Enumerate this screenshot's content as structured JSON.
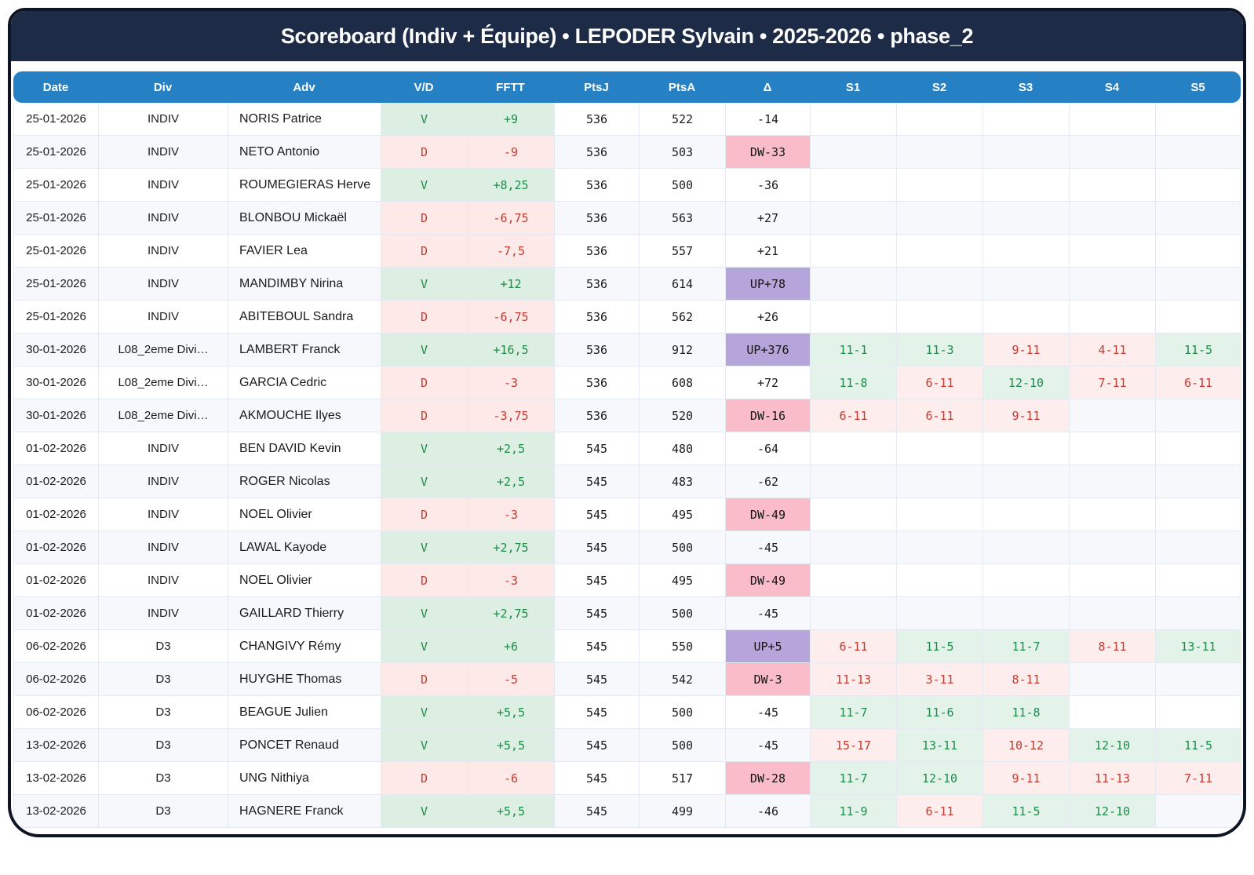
{
  "title": "Scoreboard (Indiv + Équipe) • LEPODER Sylvain • 2025-2026 • phase_2",
  "columns": [
    "Date",
    "Div",
    "Adv",
    "V/D",
    "FFTT",
    "PtsJ",
    "PtsA",
    "Δ",
    "S1",
    "S2",
    "S3",
    "S4",
    "S5"
  ],
  "colors": {
    "frame": "#0d1424",
    "banner": "#1d2b47",
    "header": "#2581c4",
    "win_bg": "#ddeee3",
    "win_text": "#1f8b4a",
    "loss_bg": "#fde9e8",
    "loss_text": "#c33a31",
    "up_bg": "#b6a5da",
    "down_bg": "#fbbcca",
    "row_alt": "#f7f8fc"
  },
  "rows": [
    {
      "date": "25-01-2026",
      "div": "INDIV",
      "adv": "NORIS Patrice",
      "vd": "V",
      "fftt": "+9",
      "ptsj": "536",
      "ptsa": "522",
      "delta": "-14",
      "delta_kind": "none",
      "sets": [
        null,
        null,
        null,
        null,
        null
      ]
    },
    {
      "date": "25-01-2026",
      "div": "INDIV",
      "adv": "NETO Antonio",
      "vd": "D",
      "fftt": "-9",
      "ptsj": "536",
      "ptsa": "503",
      "delta": "DW-33",
      "delta_kind": "down",
      "sets": [
        null,
        null,
        null,
        null,
        null
      ]
    },
    {
      "date": "25-01-2026",
      "div": "INDIV",
      "adv": "ROUMEGIERAS Herve",
      "vd": "V",
      "fftt": "+8,25",
      "ptsj": "536",
      "ptsa": "500",
      "delta": "-36",
      "delta_kind": "none",
      "sets": [
        null,
        null,
        null,
        null,
        null
      ]
    },
    {
      "date": "25-01-2026",
      "div": "INDIV",
      "adv": "BLONBOU Mickaël",
      "vd": "D",
      "fftt": "-6,75",
      "ptsj": "536",
      "ptsa": "563",
      "delta": "+27",
      "delta_kind": "none",
      "sets": [
        null,
        null,
        null,
        null,
        null
      ]
    },
    {
      "date": "25-01-2026",
      "div": "INDIV",
      "adv": "FAVIER Lea",
      "vd": "D",
      "fftt": "-7,5",
      "ptsj": "536",
      "ptsa": "557",
      "delta": "+21",
      "delta_kind": "none",
      "sets": [
        null,
        null,
        null,
        null,
        null
      ]
    },
    {
      "date": "25-01-2026",
      "div": "INDIV",
      "adv": "MANDIMBY Nirina",
      "vd": "V",
      "fftt": "+12",
      "ptsj": "536",
      "ptsa": "614",
      "delta": "UP+78",
      "delta_kind": "up",
      "sets": [
        null,
        null,
        null,
        null,
        null
      ]
    },
    {
      "date": "25-01-2026",
      "div": "INDIV",
      "adv": "ABITEBOUL Sandra",
      "vd": "D",
      "fftt": "-6,75",
      "ptsj": "536",
      "ptsa": "562",
      "delta": "+26",
      "delta_kind": "none",
      "sets": [
        null,
        null,
        null,
        null,
        null
      ]
    },
    {
      "date": "30-01-2026",
      "div": "L08_2eme Divi…",
      "adv": "LAMBERT Franck",
      "vd": "V",
      "fftt": "+16,5",
      "ptsj": "536",
      "ptsa": "912",
      "delta": "UP+376",
      "delta_kind": "up",
      "sets": [
        {
          "score": "11-1",
          "won": true
        },
        {
          "score": "11-3",
          "won": true
        },
        {
          "score": "9-11",
          "won": false
        },
        {
          "score": "4-11",
          "won": false
        },
        {
          "score": "11-5",
          "won": true
        }
      ]
    },
    {
      "date": "30-01-2026",
      "div": "L08_2eme Divi…",
      "adv": "GARCIA Cedric",
      "vd": "D",
      "fftt": "-3",
      "ptsj": "536",
      "ptsa": "608",
      "delta": "+72",
      "delta_kind": "none",
      "sets": [
        {
          "score": "11-8",
          "won": true
        },
        {
          "score": "6-11",
          "won": false
        },
        {
          "score": "12-10",
          "won": true
        },
        {
          "score": "7-11",
          "won": false
        },
        {
          "score": "6-11",
          "won": false
        }
      ]
    },
    {
      "date": "30-01-2026",
      "div": "L08_2eme Divi…",
      "adv": "AKMOUCHE Ilyes",
      "vd": "D",
      "fftt": "-3,75",
      "ptsj": "536",
      "ptsa": "520",
      "delta": "DW-16",
      "delta_kind": "down",
      "sets": [
        {
          "score": "6-11",
          "won": false
        },
        {
          "score": "6-11",
          "won": false
        },
        {
          "score": "9-11",
          "won": false
        },
        null,
        null
      ]
    },
    {
      "date": "01-02-2026",
      "div": "INDIV",
      "adv": "BEN DAVID Kevin",
      "vd": "V",
      "fftt": "+2,5",
      "ptsj": "545",
      "ptsa": "480",
      "delta": "-64",
      "delta_kind": "none",
      "sets": [
        null,
        null,
        null,
        null,
        null
      ]
    },
    {
      "date": "01-02-2026",
      "div": "INDIV",
      "adv": "ROGER Nicolas",
      "vd": "V",
      "fftt": "+2,5",
      "ptsj": "545",
      "ptsa": "483",
      "delta": "-62",
      "delta_kind": "none",
      "sets": [
        null,
        null,
        null,
        null,
        null
      ]
    },
    {
      "date": "01-02-2026",
      "div": "INDIV",
      "adv": "NOEL Olivier",
      "vd": "D",
      "fftt": "-3",
      "ptsj": "545",
      "ptsa": "495",
      "delta": "DW-49",
      "delta_kind": "down",
      "sets": [
        null,
        null,
        null,
        null,
        null
      ]
    },
    {
      "date": "01-02-2026",
      "div": "INDIV",
      "adv": "LAWAL Kayode",
      "vd": "V",
      "fftt": "+2,75",
      "ptsj": "545",
      "ptsa": "500",
      "delta": "-45",
      "delta_kind": "none",
      "sets": [
        null,
        null,
        null,
        null,
        null
      ]
    },
    {
      "date": "01-02-2026",
      "div": "INDIV",
      "adv": "NOEL Olivier",
      "vd": "D",
      "fftt": "-3",
      "ptsj": "545",
      "ptsa": "495",
      "delta": "DW-49",
      "delta_kind": "down",
      "sets": [
        null,
        null,
        null,
        null,
        null
      ]
    },
    {
      "date": "01-02-2026",
      "div": "INDIV",
      "adv": "GAILLARD Thierry",
      "vd": "V",
      "fftt": "+2,75",
      "ptsj": "545",
      "ptsa": "500",
      "delta": "-45",
      "delta_kind": "none",
      "sets": [
        null,
        null,
        null,
        null,
        null
      ]
    },
    {
      "date": "06-02-2026",
      "div": "D3",
      "adv": "CHANGIVY Rémy",
      "vd": "V",
      "fftt": "+6",
      "ptsj": "545",
      "ptsa": "550",
      "delta": "UP+5",
      "delta_kind": "up",
      "sets": [
        {
          "score": "6-11",
          "won": false
        },
        {
          "score": "11-5",
          "won": true
        },
        {
          "score": "11-7",
          "won": true
        },
        {
          "score": "8-11",
          "won": false
        },
        {
          "score": "13-11",
          "won": true
        }
      ]
    },
    {
      "date": "06-02-2026",
      "div": "D3",
      "adv": "HUYGHE Thomas",
      "vd": "D",
      "fftt": "-5",
      "ptsj": "545",
      "ptsa": "542",
      "delta": "DW-3",
      "delta_kind": "down",
      "sets": [
        {
          "score": "11-13",
          "won": false
        },
        {
          "score": "3-11",
          "won": false
        },
        {
          "score": "8-11",
          "won": false
        },
        null,
        null
      ]
    },
    {
      "date": "06-02-2026",
      "div": "D3",
      "adv": "BEAGUE Julien",
      "vd": "V",
      "fftt": "+5,5",
      "ptsj": "545",
      "ptsa": "500",
      "delta": "-45",
      "delta_kind": "none",
      "sets": [
        {
          "score": "11-7",
          "won": true
        },
        {
          "score": "11-6",
          "won": true
        },
        {
          "score": "11-8",
          "won": true
        },
        null,
        null
      ]
    },
    {
      "date": "13-02-2026",
      "div": "D3",
      "adv": "PONCET Renaud",
      "vd": "V",
      "fftt": "+5,5",
      "ptsj": "545",
      "ptsa": "500",
      "delta": "-45",
      "delta_kind": "none",
      "sets": [
        {
          "score": "15-17",
          "won": false
        },
        {
          "score": "13-11",
          "won": true
        },
        {
          "score": "10-12",
          "won": false
        },
        {
          "score": "12-10",
          "won": true
        },
        {
          "score": "11-5",
          "won": true
        }
      ]
    },
    {
      "date": "13-02-2026",
      "div": "D3",
      "adv": "UNG Nithiya",
      "vd": "D",
      "fftt": "-6",
      "ptsj": "545",
      "ptsa": "517",
      "delta": "DW-28",
      "delta_kind": "down",
      "sets": [
        {
          "score": "11-7",
          "won": true
        },
        {
          "score": "12-10",
          "won": true
        },
        {
          "score": "9-11",
          "won": false
        },
        {
          "score": "11-13",
          "won": false
        },
        {
          "score": "7-11",
          "won": false
        }
      ]
    },
    {
      "date": "13-02-2026",
      "div": "D3",
      "adv": "HAGNERE Franck",
      "vd": "V",
      "fftt": "+5,5",
      "ptsj": "545",
      "ptsa": "499",
      "delta": "-46",
      "delta_kind": "none",
      "sets": [
        {
          "score": "11-9",
          "won": true
        },
        {
          "score": "6-11",
          "won": false
        },
        {
          "score": "11-5",
          "won": true
        },
        {
          "score": "12-10",
          "won": true
        },
        null
      ]
    }
  ]
}
